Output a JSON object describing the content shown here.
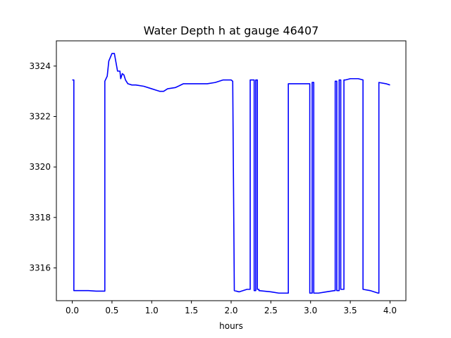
{
  "chart_data": {
    "type": "line",
    "title": "Water Depth h at gauge 46407",
    "xlabel": "hours",
    "ylabel": "",
    "xlim": [
      -0.2,
      4.2
    ],
    "ylim": [
      3314.7,
      3325.0
    ],
    "xticks": [
      0.0,
      0.5,
      1.0,
      1.5,
      2.0,
      2.5,
      3.0,
      3.5,
      4.0
    ],
    "xtick_labels": [
      "0.0",
      "0.5",
      "1.0",
      "1.5",
      "2.0",
      "2.5",
      "3.0",
      "3.5",
      "4.0"
    ],
    "yticks": [
      3316,
      3318,
      3320,
      3322,
      3324
    ],
    "ytick_labels": [
      "3316",
      "3318",
      "3320",
      "3322",
      "3324"
    ],
    "grid": false,
    "line_color": "#0000ff",
    "series": [
      {
        "x": [
          0.0,
          0.02,
          0.02,
          0.1,
          0.2,
          0.3,
          0.41,
          0.41,
          0.44,
          0.46,
          0.48,
          0.5,
          0.53,
          0.57,
          0.6,
          0.61,
          0.63,
          0.65,
          0.67,
          0.7,
          0.75,
          0.8,
          0.9,
          1.0,
          1.05,
          1.1,
          1.15,
          1.2,
          1.3,
          1.4,
          1.5,
          1.6,
          1.7,
          1.8,
          1.9,
          2.0,
          2.02,
          2.04,
          2.04,
          2.1,
          2.2,
          2.24,
          2.24,
          2.28,
          2.29,
          2.29,
          2.31,
          2.31,
          2.33,
          2.33,
          2.35,
          2.35,
          2.5,
          2.6,
          2.7,
          2.72,
          2.72,
          2.8,
          2.9,
          2.98,
          2.99,
          2.99,
          3.02,
          3.02,
          3.04,
          3.04,
          3.1,
          3.2,
          3.3,
          3.31,
          3.31,
          3.33,
          3.33,
          3.36,
          3.36,
          3.38,
          3.38,
          3.42,
          3.42,
          3.44,
          3.44,
          3.5,
          3.6,
          3.66,
          3.66,
          3.75,
          3.85,
          3.86,
          3.86,
          3.95,
          4.0
        ],
        "y": [
          3323.45,
          3323.45,
          3315.1,
          3315.1,
          3315.1,
          3315.08,
          3315.08,
          3323.4,
          3323.6,
          3324.2,
          3324.35,
          3324.5,
          3324.5,
          3323.8,
          3323.8,
          3323.5,
          3323.7,
          3323.65,
          3323.45,
          3323.3,
          3323.25,
          3323.25,
          3323.2,
          3323.1,
          3323.05,
          3323.0,
          3323.0,
          3323.1,
          3323.15,
          3323.3,
          3323.3,
          3323.3,
          3323.3,
          3323.35,
          3323.45,
          3323.45,
          3323.4,
          3315.1,
          3315.1,
          3315.05,
          3315.15,
          3315.15,
          3323.45,
          3323.45,
          3323.45,
          3315.1,
          3315.1,
          3323.45,
          3323.45,
          3315.15,
          3315.15,
          3315.1,
          3315.05,
          3315.0,
          3315.0,
          3315.0,
          3323.3,
          3323.3,
          3323.3,
          3323.3,
          3323.3,
          3315.0,
          3315.0,
          3323.35,
          3323.35,
          3315.0,
          3315.0,
          3315.05,
          3315.1,
          3315.1,
          3323.4,
          3323.4,
          3315.1,
          3315.1,
          3323.45,
          3323.45,
          3315.15,
          3315.15,
          3323.45,
          3323.45,
          3323.45,
          3323.5,
          3323.5,
          3323.45,
          3315.15,
          3315.1,
          3315.0,
          3315.0,
          3323.35,
          3323.3,
          3323.25
        ]
      }
    ]
  }
}
